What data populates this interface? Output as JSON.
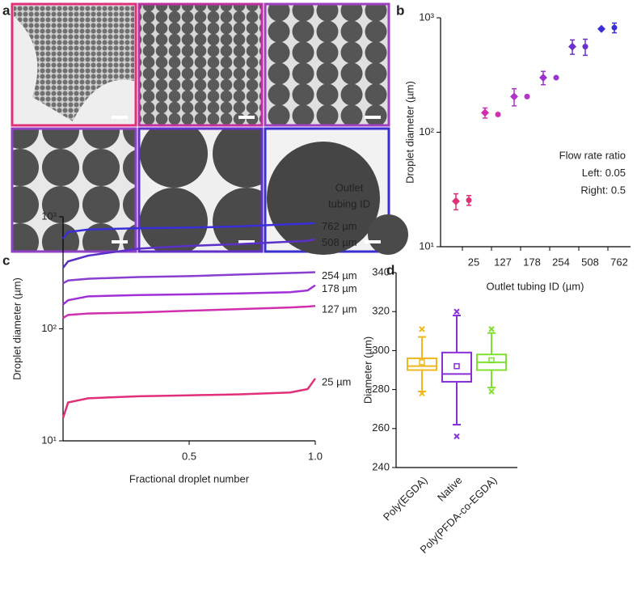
{
  "panel_labels": [
    "a",
    "b",
    "c",
    "d"
  ],
  "chart_data": [
    {
      "type": "scatter",
      "yscale": "log",
      "ylabel": "Droplet diameter (µm)",
      "xlabel": "Outlet tubing ID (µm)",
      "categories": [
        "25",
        "127",
        "178",
        "254",
        "508",
        "762"
      ],
      "colors": [
        "#e0307a",
        "#d030b0",
        "#b035c8",
        "#9a35d0",
        "#6a32cc",
        "#3a2fd6"
      ],
      "series": [
        {
          "marker": "diamond",
          "values": [
            25,
            148,
            205,
            300,
            560,
            800
          ],
          "errors": [
            4,
            15,
            35,
            40,
            80,
            null
          ]
        },
        {
          "marker": "circle",
          "values": [
            25.5,
            143,
            205,
            300,
            560,
            820
          ],
          "errors": [
            2.5,
            null,
            null,
            null,
            90,
            80
          ]
        }
      ],
      "ylim": [
        10,
        1000
      ],
      "yticks": [
        {
          "value": 10,
          "label": "10¹"
        },
        {
          "value": 100,
          "label": "10²"
        },
        {
          "value": 1000,
          "label": "10³"
        }
      ],
      "annotation": [
        "Flow rate ratio",
        "Left: 0.05",
        "Right: 0.5"
      ]
    },
    {
      "type": "line",
      "yscale": "log",
      "ylabel": "Droplet diameter (µm)",
      "xlabel": "Fractional droplet number",
      "legend_title": [
        "Outlet",
        "tubing ID"
      ],
      "x": [
        0,
        0.02,
        0.1,
        0.3,
        0.5,
        0.7,
        0.9,
        0.97,
        1
      ],
      "series": [
        {
          "name": "762 µm",
          "color": "#3a2fd6",
          "values": [
            640,
            730,
            770,
            790,
            800,
            820,
            860,
            870,
            880
          ]
        },
        {
          "name": "508 µm",
          "color": "#5a30c8",
          "values": [
            350,
            400,
            450,
            520,
            550,
            570,
            600,
            610,
            630
          ]
        },
        {
          "name": "254 µm",
          "color": "#8a3fd0",
          "values": [
            255,
            270,
            280,
            290,
            295,
            305,
            315,
            318,
            320
          ]
        },
        {
          "name": "178 µm",
          "color": "#a030d8",
          "values": [
            165,
            180,
            195,
            200,
            203,
            207,
            212,
            220,
            245
          ]
        },
        {
          "name": "127 µm",
          "color": "#d030b0",
          "values": [
            125,
            133,
            137,
            140,
            145,
            150,
            155,
            158,
            160
          ]
        },
        {
          "name": "25 µm",
          "color": "#e0307a",
          "values": [
            16,
            22,
            24,
            25,
            25.5,
            26,
            27,
            29,
            36
          ]
        }
      ],
      "xlim": [
        0,
        1
      ],
      "xticks": [
        0.5,
        {
          "value": 1,
          "label": "1.0"
        }
      ],
      "ylim": [
        10,
        1000
      ],
      "yticks": [
        {
          "value": 10,
          "label": "10¹"
        },
        {
          "value": 100,
          "label": "10²"
        },
        {
          "value": 1000,
          "label": "10³"
        }
      ]
    },
    {
      "type": "box",
      "ylabel": "Diameter (µm)",
      "categories": [
        "Poly(EGDA)",
        "Native",
        "Poly(PFDA-co-EGDA)"
      ],
      "colors": [
        "#f0b820",
        "#8a2fd6",
        "#80e030"
      ],
      "min": [
        279,
        262,
        281
      ],
      "q1": [
        290,
        284,
        290
      ],
      "median": [
        292,
        288,
        294
      ],
      "q3": [
        296,
        299,
        298
      ],
      "max": [
        307,
        318,
        309
      ],
      "mean": [
        294,
        292,
        295
      ],
      "outliers": [
        [
          311,
          278
        ],
        [
          320,
          256
        ],
        [
          311,
          279
        ]
      ],
      "ylim": [
        240,
        340
      ],
      "yticks": [
        240,
        260,
        280,
        300,
        320,
        340
      ]
    }
  ]
}
